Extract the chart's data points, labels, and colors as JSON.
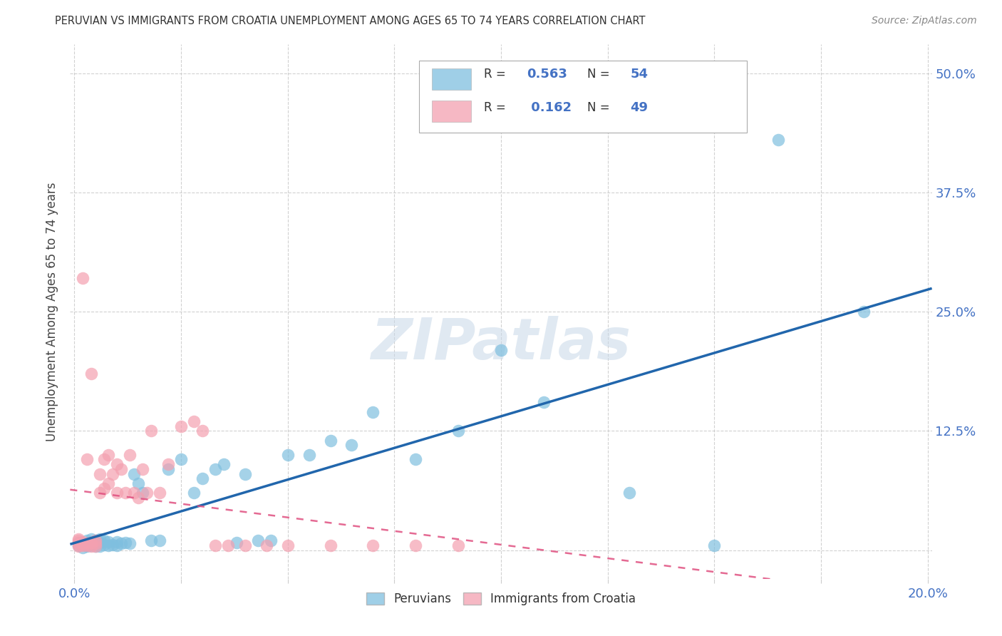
{
  "title": "PERUVIAN VS IMMIGRANTS FROM CROATIA UNEMPLOYMENT AMONG AGES 65 TO 74 YEARS CORRELATION CHART",
  "source": "Source: ZipAtlas.com",
  "ylabel": "Unemployment Among Ages 65 to 74 years",
  "xlim": [
    -0.001,
    0.201
  ],
  "ylim": [
    -0.03,
    0.53
  ],
  "xtick_positions": [
    0.0,
    0.025,
    0.05,
    0.075,
    0.1,
    0.125,
    0.15,
    0.175,
    0.2
  ],
  "xticklabels": [
    "0.0%",
    "",
    "",
    "",
    "",
    "",
    "",
    "",
    "20.0%"
  ],
  "ytick_positions": [
    0.0,
    0.125,
    0.25,
    0.375,
    0.5
  ],
  "yticklabels_right": [
    "",
    "12.5%",
    "25.0%",
    "37.5%",
    "50.0%"
  ],
  "peruvians_color": "#7fbfdf",
  "croatia_color": "#f4a0b0",
  "peruvians_line_color": "#2166ac",
  "croatia_line_color": "#e05080",
  "croatia_dash_color": "#d4899a",
  "legend_color_peru": "#7fbfdf",
  "legend_color_croatia": "#f4a0b0",
  "legend_text_color": "#4472c4",
  "watermark": "ZIPatlas",
  "watermark_color": "#c8d8e8",
  "background_color": "#ffffff",
  "peru_x": [
    0.001,
    0.001,
    0.002,
    0.002,
    0.003,
    0.003,
    0.003,
    0.004,
    0.004,
    0.004,
    0.005,
    0.005,
    0.005,
    0.006,
    0.006,
    0.006,
    0.007,
    0.007,
    0.008,
    0.008,
    0.009,
    0.01,
    0.01,
    0.011,
    0.012,
    0.013,
    0.014,
    0.015,
    0.016,
    0.018,
    0.02,
    0.022,
    0.025,
    0.028,
    0.03,
    0.033,
    0.035,
    0.038,
    0.04,
    0.043,
    0.046,
    0.05,
    0.055,
    0.06,
    0.065,
    0.07,
    0.08,
    0.09,
    0.1,
    0.11,
    0.13,
    0.15,
    0.165,
    0.185
  ],
  "peru_y": [
    0.005,
    0.008,
    0.003,
    0.007,
    0.004,
    0.006,
    0.01,
    0.005,
    0.008,
    0.012,
    0.004,
    0.007,
    0.01,
    0.004,
    0.008,
    0.012,
    0.006,
    0.01,
    0.005,
    0.009,
    0.006,
    0.005,
    0.009,
    0.007,
    0.008,
    0.007,
    0.08,
    0.07,
    0.06,
    0.01,
    0.01,
    0.085,
    0.095,
    0.06,
    0.075,
    0.085,
    0.09,
    0.008,
    0.08,
    0.01,
    0.01,
    0.1,
    0.1,
    0.115,
    0.11,
    0.145,
    0.095,
    0.125,
    0.21,
    0.155,
    0.06,
    0.005,
    0.43,
    0.25
  ],
  "croatia_x": [
    0.001,
    0.001,
    0.001,
    0.001,
    0.001,
    0.002,
    0.002,
    0.002,
    0.002,
    0.003,
    0.003,
    0.003,
    0.004,
    0.004,
    0.004,
    0.005,
    0.005,
    0.005,
    0.006,
    0.006,
    0.007,
    0.007,
    0.008,
    0.008,
    0.009,
    0.01,
    0.01,
    0.011,
    0.012,
    0.013,
    0.014,
    0.015,
    0.016,
    0.017,
    0.018,
    0.02,
    0.022,
    0.025,
    0.028,
    0.03,
    0.033,
    0.036,
    0.04,
    0.045,
    0.05,
    0.06,
    0.07,
    0.08,
    0.09
  ],
  "croatia_y": [
    0.004,
    0.006,
    0.008,
    0.01,
    0.012,
    0.005,
    0.007,
    0.009,
    0.285,
    0.005,
    0.007,
    0.095,
    0.004,
    0.008,
    0.185,
    0.004,
    0.007,
    0.01,
    0.06,
    0.08,
    0.065,
    0.095,
    0.07,
    0.1,
    0.08,
    0.06,
    0.09,
    0.085,
    0.06,
    0.1,
    0.06,
    0.055,
    0.085,
    0.06,
    0.125,
    0.06,
    0.09,
    0.13,
    0.135,
    0.125,
    0.005,
    0.005,
    0.005,
    0.005,
    0.005,
    0.005,
    0.005,
    0.005,
    0.005
  ]
}
